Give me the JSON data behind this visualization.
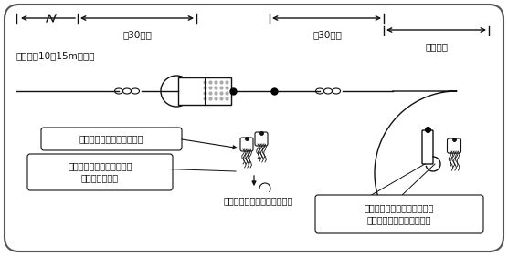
{
  "bg_color": "#ffffff",
  "border_color": "#555555",
  "line_color": "#111111",
  "text_color": "#111111",
  "fs": 7.5,
  "texts": {
    "dim1": "約30ｃｍ",
    "dim2": "約30ｃｍ",
    "dim3": "約２ヒロ",
    "ship_dist": "船尾から10〜15mぐらい",
    "label1": "牛の角かアワビ貝のカグラ",
    "label2": "タコのベイトをカグラに絹\n糸で括りつける",
    "label3": "タコの足先より針が出ない様",
    "label4": "出来るだけ銀々に光った弓角\n（テンテン）がよく釣れる"
  }
}
